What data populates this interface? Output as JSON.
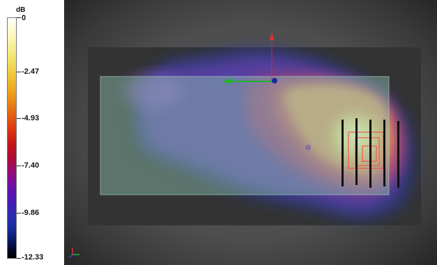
{
  "legend": {
    "unit": "dB",
    "ticks": [
      "0",
      "-2.47",
      "-4.93",
      "-7.40",
      "-9.86",
      "-12.33"
    ]
  },
  "colors": {
    "viewport_bg": "#4e4e4e",
    "floor_plane": "#333333",
    "room_box": "#8ec4b0",
    "hotspot": "#f6f0a0",
    "axis_x": "#22b030",
    "axis_y": "#e23030",
    "antenna": "#111111",
    "highlight_frame": "#ff4040"
  },
  "icons": [
    "axis-triad-icon",
    "gizmo-y-arrow-icon",
    "gizmo-x-arrow-icon",
    "gizmo-center-icon"
  ]
}
